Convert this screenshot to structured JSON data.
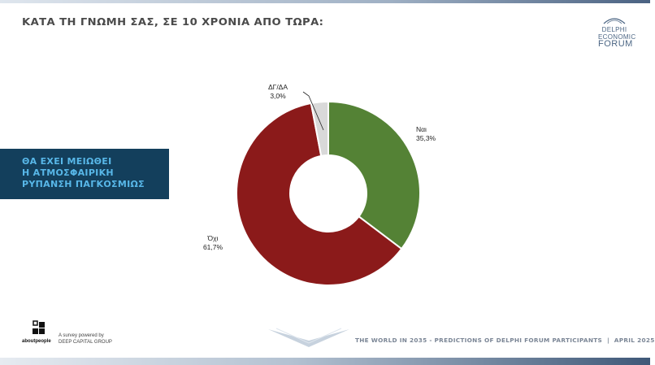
{
  "header": {
    "title": "ΚΑΤΑ ΤΗ ΓΝΩΜΗ ΣΑΣ, ΣΕ 10 ΧΡΟΝΙΑ ΑΠΟ ΤΩΡΑ:"
  },
  "brand_logo": {
    "line1": "DELPHI",
    "line2": "ECONOMIC",
    "line3": "FORUM"
  },
  "statement": {
    "line1": "ΘΑ ΕΧΕΙ ΜΕΙΩΘΕΙ",
    "line2": "Η ΑΤΜΟΣΦΑΙΡΙΚΗ",
    "line3": "ΡΥΠΑΝΣΗ ΠΑΓΚΟΣΜΙΩΣ"
  },
  "footer": {
    "aboutpeople_label": "aboutpeople",
    "survey_line1": "A survey powered by",
    "survey_line2": "DEEP CAPITAL GROUP",
    "report_title": "THE WORLD IN 2035 - PREDICTIONS OF DELPHI FORUM PARTICIPANTS",
    "separator": "|",
    "date": "APRIL 2025"
  },
  "colors": {
    "yes": "#548235",
    "no": "#8b1a1a",
    "dk": "#d9d9d9",
    "statement_bg": "#133f5c",
    "statement_text": "#58b7e8"
  },
  "chart_data": {
    "type": "pie",
    "variant": "donut",
    "slices": [
      {
        "label": "Ναι",
        "value": 35.3,
        "value_label": "35,3%",
        "color": "#548235"
      },
      {
        "label": "Όχι",
        "value": 61.7,
        "value_label": "61,7%",
        "color": "#8b1a1a"
      },
      {
        "label": "ΔΓ/ΔΑ",
        "value": 3.0,
        "value_label": "3,0%",
        "color": "#d9d9d9"
      }
    ]
  }
}
